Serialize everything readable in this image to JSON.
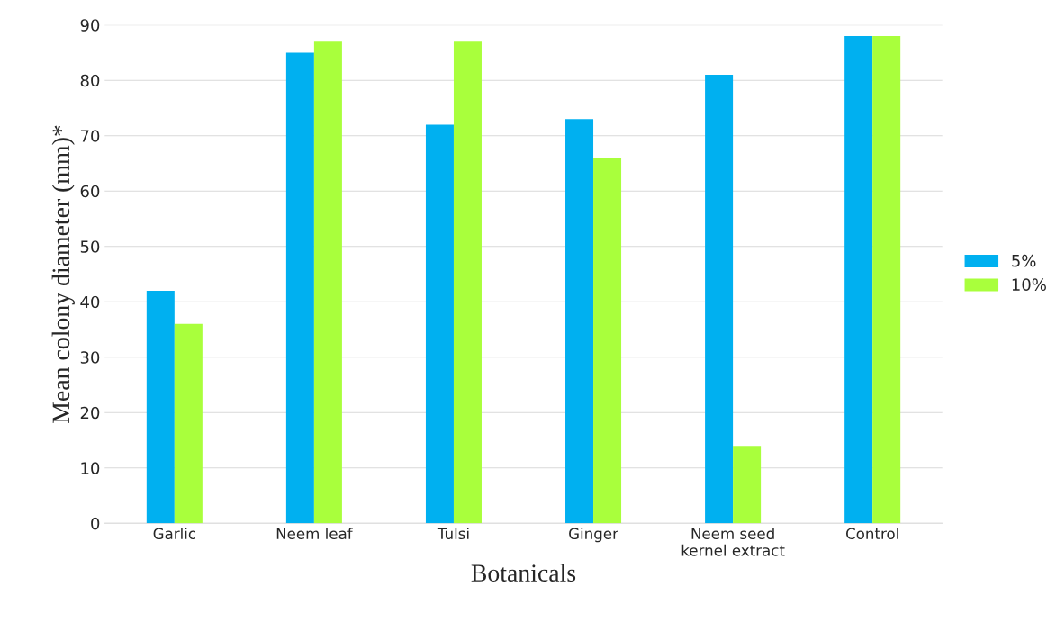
{
  "chart_data": {
    "type": "bar",
    "xlabel": "Botanicals",
    "ylabel": "Mean colony diameter (mm)*",
    "categories": [
      "Garlic",
      "Neem leaf",
      "Tulsi",
      "Ginger",
      "Neem seed\nkernel extract",
      "Control"
    ],
    "series": [
      {
        "name": "5%",
        "color": "#00b0f0",
        "values": [
          42,
          85,
          72,
          73,
          81,
          88
        ]
      },
      {
        "name": "10%",
        "color": "#a9ff3c",
        "values": [
          36,
          87,
          87,
          66,
          14,
          88
        ]
      }
    ],
    "ylim": [
      0,
      90
    ],
    "yticks": [
      0,
      10,
      20,
      30,
      40,
      50,
      60,
      70,
      80,
      90
    ],
    "grid": "y",
    "legend": "right"
  }
}
